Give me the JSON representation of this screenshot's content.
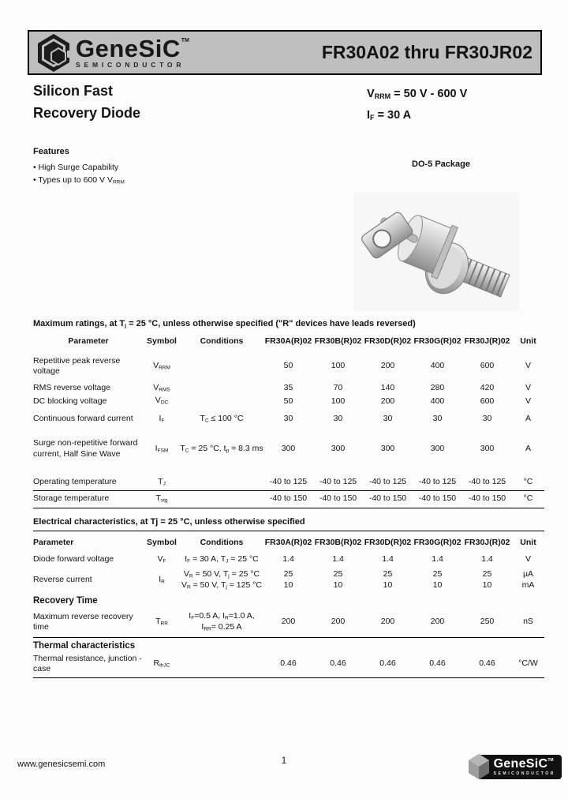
{
  "header": {
    "brand": "GeneSiC",
    "brand_tm": "TM",
    "brand_tagline": "SEMICONDUCTOR",
    "part_range": "FR30A02 thru FR30JR02"
  },
  "title_block": {
    "line1": "Silicon Fast",
    "line2": "Recovery Diode",
    "spec_vrrm": "V~RRM~ = 50 V - 600 V",
    "spec_if": "I~F~ = 30 A"
  },
  "features": {
    "heading": "Features",
    "items": [
      "• High Surge Capability",
      "• Types up to 600 V V~RRM~"
    ],
    "package_label": "DO-5 Package"
  },
  "max_ratings": {
    "title": "Maximum ratings, at T~j~ = 25 °C, unless otherwise specified (\"R\" devices have leads reversed)",
    "columns": [
      "Parameter",
      "Symbol",
      "Conditions",
      "FR30A(R)02",
      "FR30B(R)02",
      "FR30D(R)02",
      "FR30G(R)02",
      "FR30J(R)02",
      "Unit"
    ],
    "rows": [
      {
        "parameter": "Repetitive peak reverse voltage",
        "symbol": "V~RRM~",
        "lines": [
          {
            "condition": [
              ""
            ],
            "values": [
              "50",
              "100",
              "200",
              "400",
              "600"
            ],
            "unit": "V"
          }
        ]
      },
      {
        "parameter": "RMS reverse voltage",
        "symbol": "V~RMS~",
        "lines": [
          {
            "condition": [
              ""
            ],
            "values": [
              "35",
              "70",
              "140",
              "280",
              "420"
            ],
            "unit": "V"
          }
        ]
      },
      {
        "parameter": "DC blocking voltage",
        "symbol": "V~DC~",
        "lines": [
          {
            "condition": [
              ""
            ],
            "values": [
              "50",
              "100",
              "200",
              "400",
              "600"
            ],
            "unit": "V"
          }
        ]
      },
      {
        "parameter": "Continuous forward current",
        "symbol": "I~F~",
        "lines": [
          {
            "condition": [
              "T~C~ ≤ 100 °C"
            ],
            "values": [
              "30",
              "30",
              "30",
              "30",
              "30"
            ],
            "unit": "A"
          }
        ]
      },
      {
        "parameter": "Surge non-repetitive forward current, Half Sine Wave",
        "symbol": "I~FSM~",
        "lines": [
          {
            "condition": [
              "T~C~ = 25 °C, t~p~ = 8.3 ms"
            ],
            "values": [
              "300",
              "300",
              "300",
              "300",
              "300"
            ],
            "unit": "A"
          }
        ]
      },
      {
        "parameter": "Operating temperature",
        "symbol": "T~J~",
        "lines": [
          {
            "condition": [
              ""
            ],
            "values": [
              "-40 to 125",
              "-40 to 125",
              "-40 to 125",
              "-40 to 125",
              "-40 to 125"
            ],
            "unit": "°C"
          }
        ]
      },
      {
        "parameter": "Storage temperature",
        "symbol": "T~stg~",
        "lines": [
          {
            "condition": [
              ""
            ],
            "values": [
              "-40 to 150",
              "-40 to 150",
              "-40 to 150",
              "-40 to 150",
              "-40 to 150"
            ],
            "unit": "°C"
          }
        ]
      }
    ]
  },
  "electrical": {
    "title": "Electrical characteristics, at Tj = 25 °C, unless otherwise specified",
    "columns": [
      "Parameter",
      "Symbol",
      "Conditions",
      "FR30A(R)02",
      "FR30B(R)02",
      "FR30D(R)02",
      "FR30G(R)02",
      "FR30J(R)02",
      "Unit"
    ],
    "rows": [
      {
        "parameter": "Diode forward voltage",
        "symbol": "V~F~",
        "lines": [
          {
            "condition": [
              "I~F~ = 30 A, T~J~ = 25 °C"
            ],
            "values": [
              "1.4",
              "1.4",
              "1.4",
              "1.4",
              "1.4"
            ],
            "unit": "V"
          }
        ]
      },
      {
        "parameter": "Reverse current",
        "symbol": "I~R~",
        "lines": [
          {
            "condition": [
              "V~R~ = 50 V, T~j~ = 25 °C"
            ],
            "values": [
              "25",
              "25",
              "25",
              "25",
              "25"
            ],
            "unit": "µA"
          },
          {
            "condition": [
              "V~R~ = 50 V, T~j~ = 125 °C"
            ],
            "values": [
              "10",
              "10",
              "10",
              "10",
              "10"
            ],
            "unit": "mA"
          }
        ]
      },
      {
        "section": "Recovery Time"
      },
      {
        "parameter": "Maximum reverse recovery time",
        "symbol": "T~RR~",
        "lines": [
          {
            "condition": [
              "I~F~=0.5 A, I~R~=1.0 A,",
              "I~RR~= 0.25 A"
            ],
            "values": [
              "200",
              "200",
              "200",
              "200",
              "250"
            ],
            "unit": "nS"
          }
        ]
      },
      {
        "section": "Thermal characteristics"
      },
      {
        "parameter": "Thermal resistance, junction - case",
        "symbol": "R~thJC~",
        "lines": [
          {
            "condition": [
              ""
            ],
            "values": [
              "0.46",
              "0.46",
              "0.46",
              "0.46",
              "0.46"
            ],
            "unit": "°C/W"
          }
        ]
      }
    ]
  },
  "footer": {
    "website": "www.genesicsemi.com",
    "page_number": "1",
    "brand": "GeneSiC",
    "brand_tm": "TM",
    "brand_tagline": "SEMICONDUCTOR"
  },
  "colors": {
    "header_gray": "#bfbfbf",
    "footer_logo_bg": "#111111",
    "text_black": "#141414"
  }
}
